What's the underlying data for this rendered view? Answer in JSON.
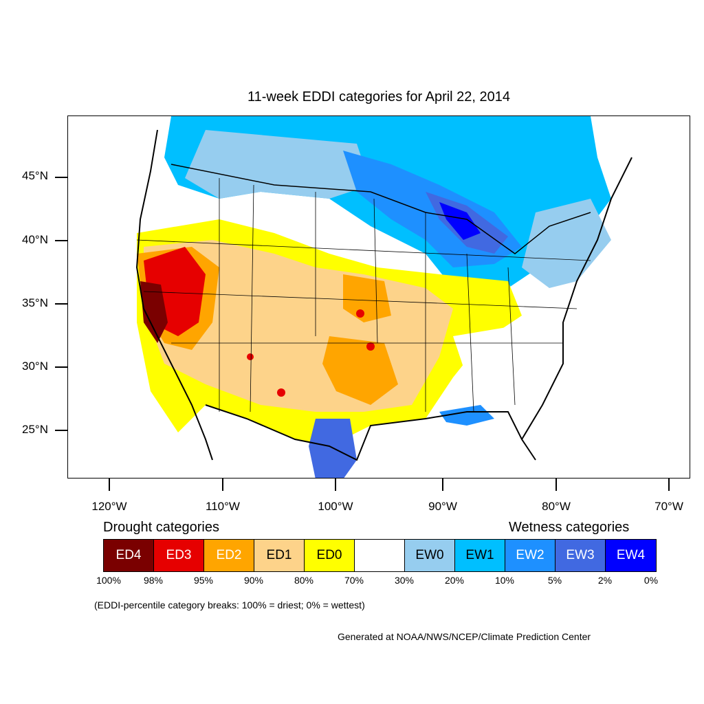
{
  "title": "11-week EDDI categories for April 22, 2014",
  "y_axis": [
    "45°N",
    "40°N",
    "35°N",
    "30°N",
    "25°N"
  ],
  "x_axis": [
    "120°W",
    "110°W",
    "100°W",
    "90°W",
    "80°W",
    "70°W"
  ],
  "drought_heading": "Drought categories",
  "wetness_heading": "Wetness categories",
  "legend": [
    {
      "label": "ED4",
      "color": "#7a0000",
      "text_color": "#ffffff"
    },
    {
      "label": "ED3",
      "color": "#e60000",
      "text_color": "#ffffff"
    },
    {
      "label": "ED2",
      "color": "#ffa500",
      "text_color": "#ffffff"
    },
    {
      "label": "ED1",
      "color": "#fdd38a",
      "text_color": "#000000"
    },
    {
      "label": "ED0",
      "color": "#ffff00",
      "text_color": "#000000"
    },
    {
      "label": "",
      "color": "#ffffff",
      "text_color": "#000000"
    },
    {
      "label": "EW0",
      "color": "#96cdef",
      "text_color": "#000000"
    },
    {
      "label": "EW1",
      "color": "#00bfff",
      "text_color": "#000000"
    },
    {
      "label": "EW2",
      "color": "#1e90ff",
      "text_color": "#ffffff"
    },
    {
      "label": "EW3",
      "color": "#4169e1",
      "text_color": "#ffffff"
    },
    {
      "label": "EW4",
      "color": "#0000ff",
      "text_color": "#ffffff"
    }
  ],
  "percent_breaks": [
    "100%",
    "98%",
    "95%",
    "90%",
    "80%",
    "70%",
    "30%",
    "20%",
    "10%",
    "5%",
    "2%",
    "0%"
  ],
  "note": "(EDDI-percentile category breaks: 100% = driest; 0% = wettest)",
  "credit": "Generated at NOAA/NWS/NCEP/Climate Prediction Center"
}
